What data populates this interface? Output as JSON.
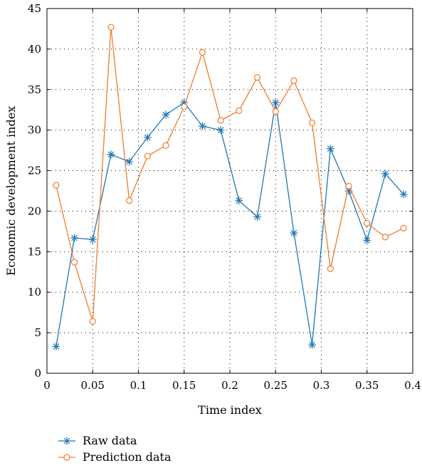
{
  "chart_data": {
    "type": "line",
    "title": "",
    "xlabel": "Time index",
    "ylabel": "Economic development index",
    "xlim": [
      0,
      0.4
    ],
    "ylim": [
      0,
      45
    ],
    "x_ticks": [
      0,
      0.05,
      0.1,
      0.15,
      0.2,
      0.25,
      0.3,
      0.35,
      0.4
    ],
    "x_tick_labels": [
      "0",
      "0.05",
      "0.1",
      "0.15",
      "0.2",
      "0.25",
      "0.3",
      "0.35",
      "0.4"
    ],
    "y_ticks": [
      0,
      5,
      10,
      15,
      20,
      25,
      30,
      35,
      40,
      45
    ],
    "y_tick_labels": [
      "0",
      "5",
      "10",
      "15",
      "20",
      "25",
      "30",
      "35",
      "40",
      "45"
    ],
    "grid": true,
    "legend_position": "bottom-left, below plot",
    "x": [
      0.01,
      0.03,
      0.05,
      0.07,
      0.09,
      0.11,
      0.13,
      0.15,
      0.17,
      0.19,
      0.21,
      0.23,
      0.25,
      0.27,
      0.29,
      0.31,
      0.33,
      0.35,
      0.37,
      0.39
    ],
    "series": [
      {
        "name": "Raw data",
        "color": "#1f77b4",
        "marker": "asterisk",
        "values": [
          3.3,
          16.7,
          16.5,
          27.0,
          26.1,
          29.1,
          31.9,
          33.4,
          30.5,
          30.0,
          21.3,
          19.3,
          33.4,
          17.3,
          3.5,
          27.7,
          22.5,
          16.4,
          24.6,
          22.1
        ]
      },
      {
        "name": "Prediction data",
        "color": "#f07c2e",
        "marker": "circle",
        "values": [
          23.2,
          13.7,
          6.4,
          42.7,
          21.3,
          26.8,
          28.1,
          32.9,
          39.6,
          31.2,
          32.4,
          36.5,
          32.3,
          36.1,
          30.9,
          12.9,
          23.1,
          18.5,
          16.8,
          17.9
        ]
      }
    ]
  }
}
